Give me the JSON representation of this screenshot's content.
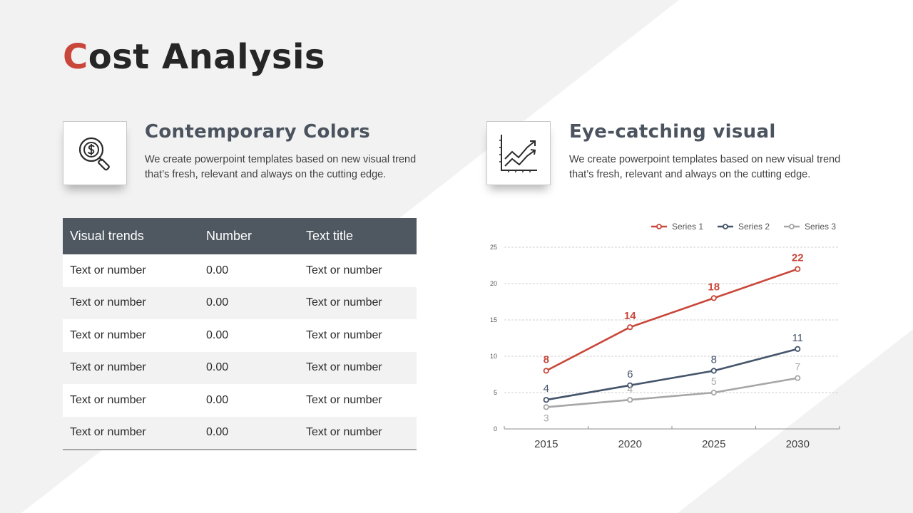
{
  "slide": {
    "title_first_letter": "C",
    "title_rest": "ost Analysis"
  },
  "features": [
    {
      "icon": "dollar-search-icon",
      "heading": "Contemporary Colors",
      "body": "We create powerpoint templates based on new visual trend that’s fresh, relevant and always on the cutting edge."
    },
    {
      "icon": "trend-chart-icon",
      "heading": "Eye-catching visual",
      "body": "We create powerpoint templates based on new visual trend that’s fresh, relevant and always on the cutting edge."
    }
  ],
  "table": {
    "headers": [
      "Visual trends",
      "Number",
      "Text title"
    ],
    "rows": [
      [
        "Text or number",
        "0.00",
        "Text or number"
      ],
      [
        "Text or number",
        "0.00",
        "Text or number"
      ],
      [
        "Text or number",
        "0.00",
        "Text or number"
      ],
      [
        "Text or number",
        "0.00",
        "Text or number"
      ],
      [
        "Text or number",
        "0.00",
        "Text or number"
      ],
      [
        "Text or number",
        "0.00",
        "Text or number"
      ]
    ]
  },
  "colors": {
    "accent": "#c9473a",
    "header_bg": "#4f5861",
    "series1": "#c9473a",
    "series2": "#44546a",
    "series3": "#a6a6a6"
  },
  "chart_data": {
    "type": "line",
    "title": "",
    "xlabel": "",
    "ylabel": "",
    "categories": [
      "2015",
      "2020",
      "2025",
      "2030"
    ],
    "ylim": [
      0,
      25
    ],
    "yticks": [
      0,
      5,
      10,
      15,
      20,
      25
    ],
    "grid": true,
    "legend": "top-right",
    "series": [
      {
        "name": "Series 1",
        "values": [
          8,
          14,
          18,
          22
        ],
        "color": "#c9473a"
      },
      {
        "name": "Series 2",
        "values": [
          4,
          6,
          8,
          11
        ],
        "color": "#44546a"
      },
      {
        "name": "Series 3",
        "values": [
          3,
          4,
          5,
          7
        ],
        "color": "#a6a6a6"
      }
    ]
  }
}
